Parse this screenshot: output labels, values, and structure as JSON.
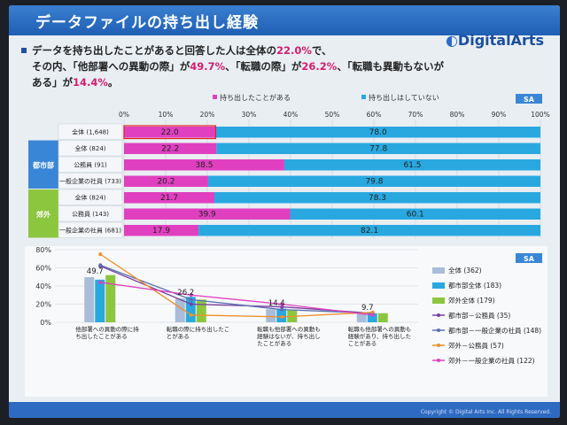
{
  "slide": {
    "title": "データファイルの持ち出し経験",
    "logo": "DigitalArts",
    "lead": {
      "p1": "データを持ち出したことがあると回答した人は全体の",
      "v1": "22.0%",
      "p2": "で、",
      "p3": "その内、「他部署への異動の際」が",
      "v2": "49.7%",
      "p4": "、「転職の際」が",
      "v3": "26.2%",
      "p5": "、「転職も異動もないがある」が",
      "v4": "14.4%",
      "p6": "。"
    },
    "copyright": "Copyright © Digital Arts Inc. All Rights Reserved."
  },
  "chart_data": [
    {
      "type": "bar",
      "stacked": true,
      "orientation": "horizontal",
      "badge": "SA",
      "legend": [
        "持ち出したことがある",
        "持ち出しはしていない"
      ],
      "colors": [
        "#e040c0",
        "#29a8e0"
      ],
      "xlim": [
        0,
        100
      ],
      "ticks": [
        "0%",
        "10%",
        "20%",
        "30%",
        "40%",
        "50%",
        "60%",
        "70%",
        "80%",
        "90%",
        "100%"
      ],
      "groups": [
        {
          "label": "",
          "color": "#e9eef3"
        },
        {
          "label": "都市部",
          "color": "#3a86d6"
        },
        {
          "label": "郊外",
          "color": "#8cc63f"
        }
      ],
      "rows": [
        {
          "group": 0,
          "label": "全体 (1,648)",
          "values": [
            22.0,
            78.0
          ],
          "labels": [
            "22.0",
            "78.0"
          ],
          "highlight": true
        },
        {
          "group": 1,
          "label": "全体 (824)",
          "values": [
            22.2,
            77.8
          ],
          "labels": [
            "22.2",
            "77.8"
          ]
        },
        {
          "group": 1,
          "label": "公務員 (91)",
          "values": [
            38.5,
            61.5
          ],
          "labels": [
            "38.5",
            "61.5"
          ]
        },
        {
          "group": 1,
          "label": "一般企業の社員 (733)",
          "values": [
            20.2,
            79.8
          ],
          "labels": [
            "20.2",
            "79.8"
          ]
        },
        {
          "group": 2,
          "label": "全体 (824)",
          "values": [
            21.7,
            78.3
          ],
          "labels": [
            "21.7",
            "78.3"
          ]
        },
        {
          "group": 2,
          "label": "公務員 (143)",
          "values": [
            39.9,
            60.1
          ],
          "labels": [
            "39.9",
            "60.1"
          ]
        },
        {
          "group": 2,
          "label": "一般企業の社員 (681)",
          "values": [
            17.9,
            82.1
          ],
          "labels": [
            "17.9",
            "82.1"
          ]
        }
      ]
    },
    {
      "type": "bar",
      "badge": "SA",
      "ylim": [
        0,
        80
      ],
      "yticks": [
        "0%",
        "20%",
        "40%",
        "60%",
        "80%"
      ],
      "categories": [
        "他部署への異動の際に持ち出したことがある",
        "転職の際に持ち出したことがある",
        "転職も他部署への異動も経験はないが、持ち出したことがある",
        "転職も他部署への異動も経験があり、持ち出したことがある"
      ],
      "value_labels": [
        "49.7",
        "26.2",
        "14.4",
        "9.7"
      ],
      "bar_series": [
        {
          "name": "全体 (362)",
          "color": "#a9bcd8",
          "values": [
            49.7,
            26.2,
            14.4,
            9.7
          ]
        },
        {
          "name": "都市部全体 (183)",
          "color": "#29a8e0",
          "values": [
            47,
            28,
            15,
            10
          ]
        },
        {
          "name": "郊外全体 (179)",
          "color": "#8cc63f",
          "values": [
            52,
            25,
            13,
            10
          ]
        }
      ],
      "line_series": [
        {
          "name": "都市部－公務員 (35)",
          "color": "#7a3fa0",
          "values": [
            62,
            20,
            17,
            10
          ]
        },
        {
          "name": "都市部－一般企業の社員 (148)",
          "color": "#5a6fb0",
          "values": [
            63,
            25,
            14,
            10
          ]
        },
        {
          "name": "郊外－公務員 (57)",
          "color": "#f0902a",
          "values": [
            75,
            8,
            6,
            11
          ]
        },
        {
          "name": "郊外－一般企業の社員 (122)",
          "color": "#e040c0",
          "values": [
            44,
            30,
            20,
            8
          ]
        }
      ]
    }
  ]
}
